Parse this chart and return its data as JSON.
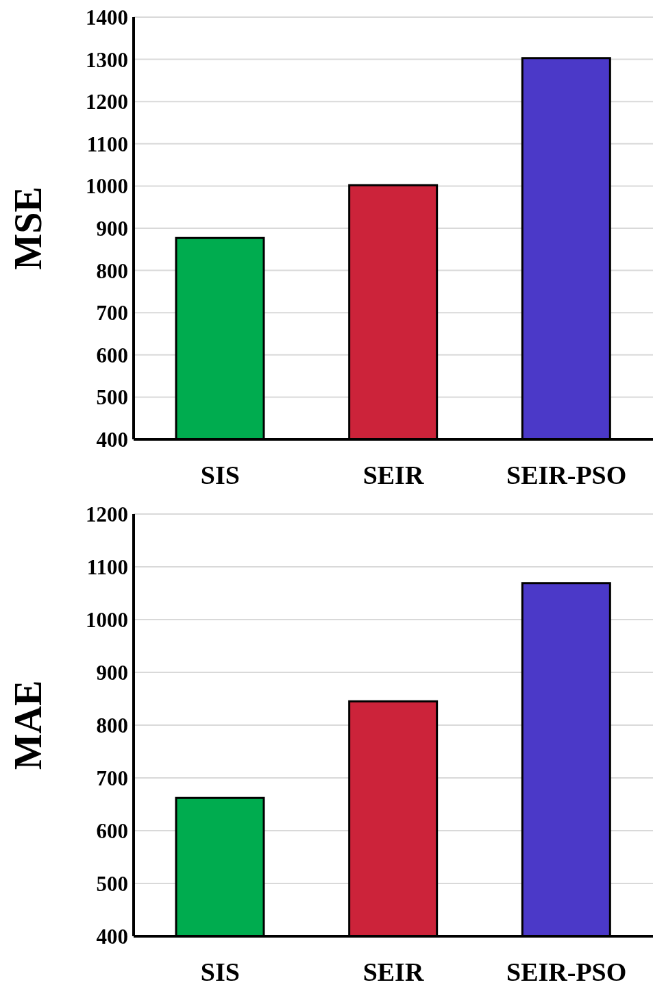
{
  "chart_data": [
    {
      "type": "bar",
      "ylabel": "MSE",
      "categories": [
        "SIS",
        "SEIR",
        "SEIR-PSO"
      ],
      "values": [
        877,
        1002,
        1303
      ],
      "colors": [
        "#00ac4f",
        "#cc233a",
        "#4b39c8"
      ],
      "ylim": [
        400,
        1400
      ],
      "yticks": [
        400,
        500,
        600,
        700,
        800,
        900,
        1000,
        1100,
        1200,
        1300,
        1400
      ],
      "grid": "y"
    },
    {
      "type": "bar",
      "ylabel": "MAE",
      "categories": [
        "SIS",
        "SEIR",
        "SEIR-PSO"
      ],
      "values": [
        662,
        845,
        1069
      ],
      "colors": [
        "#00ac4f",
        "#cc233a",
        "#4b39c8"
      ],
      "ylim": [
        400,
        1200
      ],
      "yticks": [
        400,
        500,
        600,
        700,
        800,
        900,
        1000,
        1100,
        1200
      ],
      "grid": "y"
    }
  ]
}
